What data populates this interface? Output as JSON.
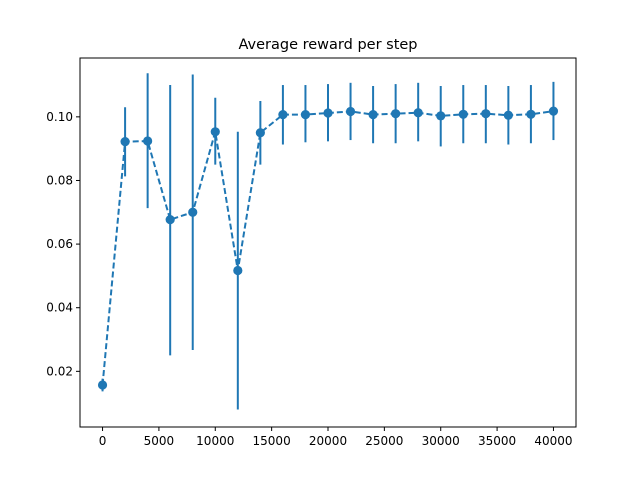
{
  "chart_data": {
    "type": "line",
    "title": "Average reward per step",
    "xlabel": "",
    "ylabel": "",
    "xlim": [
      -2000,
      42000
    ],
    "ylim": [
      0.0025,
      0.1185
    ],
    "x_ticks": [
      0,
      5000,
      10000,
      15000,
      20000,
      25000,
      30000,
      35000,
      40000
    ],
    "y_ticks": [
      0.02,
      0.04,
      0.06,
      0.08,
      0.1
    ],
    "x_tick_labels": [
      "0",
      "5000",
      "10000",
      "15000",
      "20000",
      "25000",
      "30000",
      "35000",
      "40000"
    ],
    "y_tick_labels": [
      "0.02",
      "0.04",
      "0.06",
      "0.08",
      "0.10"
    ],
    "grid": false,
    "series": [
      {
        "color": "#1f77b4",
        "line_style": "dashed",
        "marker": "circle",
        "x": [
          0,
          2000,
          4000,
          6000,
          8000,
          10000,
          12000,
          14000,
          16000,
          18000,
          20000,
          22000,
          24000,
          26000,
          28000,
          30000,
          32000,
          34000,
          36000,
          38000,
          40000
        ],
        "values": [
          0.0157,
          0.0922,
          0.0924,
          0.0677,
          0.07,
          0.0953,
          0.0517,
          0.095,
          0.1007,
          0.1007,
          0.1012,
          0.1017,
          0.1007,
          0.101,
          0.1013,
          0.1003,
          0.1008,
          0.101,
          0.1005,
          0.1008,
          0.1018
        ],
        "error_low": [
          0.0137,
          0.0813,
          0.0713,
          0.025,
          0.0267,
          0.085,
          0.008,
          0.085,
          0.0913,
          0.092,
          0.0923,
          0.0927,
          0.0917,
          0.0917,
          0.0923,
          0.0907,
          0.0917,
          0.0917,
          0.0913,
          0.0917,
          0.0927
        ],
        "error_high": [
          0.0177,
          0.103,
          0.1137,
          0.11,
          0.1133,
          0.106,
          0.0953,
          0.105,
          0.11,
          0.11,
          0.1103,
          0.1107,
          0.1097,
          0.1103,
          0.1107,
          0.1097,
          0.11,
          0.11,
          0.1097,
          0.11,
          0.111
        ]
      }
    ]
  }
}
